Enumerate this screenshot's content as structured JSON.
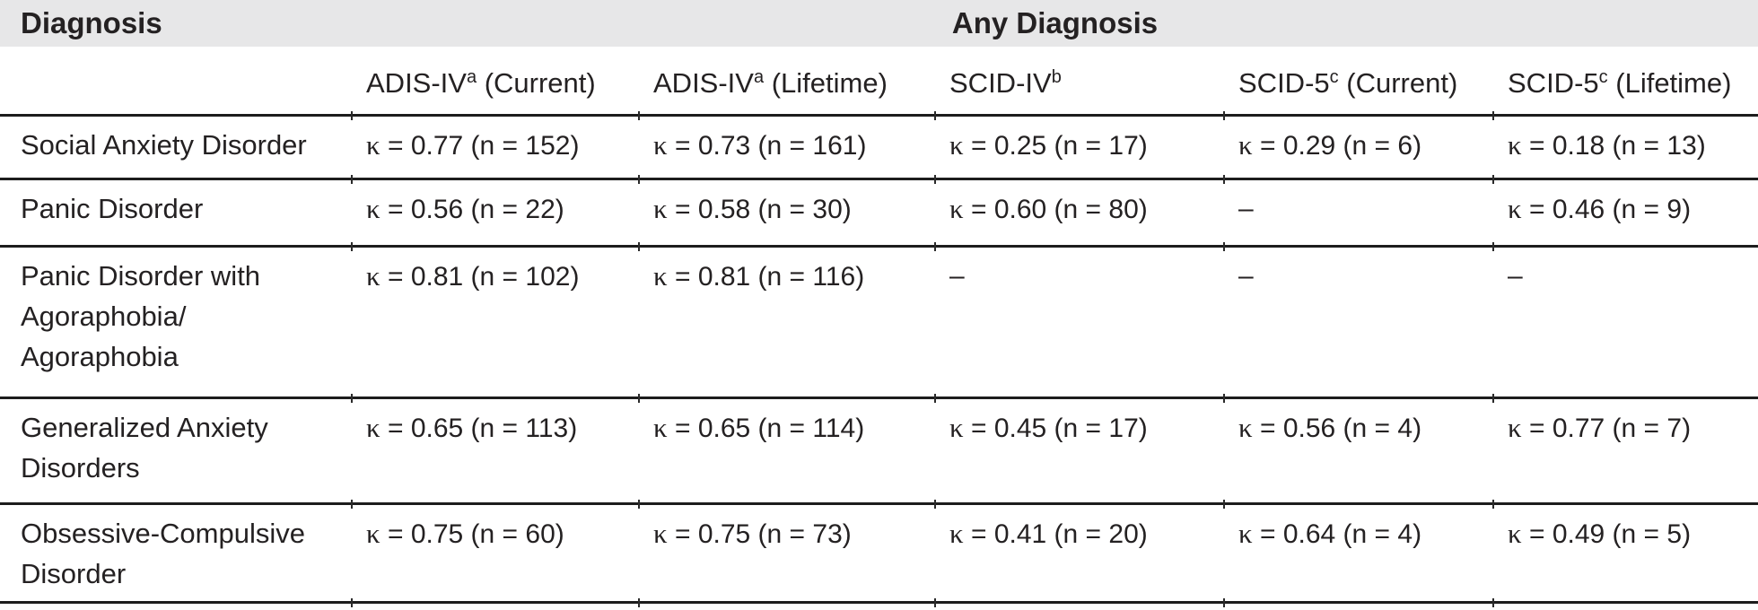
{
  "table": {
    "corner_header": "Diagnosis",
    "group_header": "Any Diagnosis",
    "columns": [
      {
        "pre": "ADIS-IV",
        "sup": "a",
        "post": " (Current)"
      },
      {
        "pre": "ADIS-IV",
        "sup": "a",
        "post": " (Lifetime)"
      },
      {
        "pre": "SCID-IV",
        "sup": "b",
        "post": ""
      },
      {
        "pre": "SCID-5",
        "sup": "c",
        "post": " (Current)"
      },
      {
        "pre": "SCID-5",
        "sup": "c",
        "post": " (Lifetime)"
      }
    ],
    "rows": [
      {
        "label": "Social Anxiety Disorder",
        "values": [
          "κ = 0.77 (n = 152)",
          "κ = 0.73 (n = 161)",
          "κ = 0.25 (n = 17)",
          "κ = 0.29 (n = 6)",
          "κ = 0.18 (n = 13)"
        ]
      },
      {
        "label": "Panic Disorder",
        "values": [
          "κ = 0.56 (n = 22)",
          "κ = 0.58 (n = 30)",
          "κ = 0.60 (n = 80)",
          "–",
          "κ = 0.46 (n = 9)"
        ]
      },
      {
        "label": "Panic Disorder with\nAgoraphobia/\nAgoraphobia",
        "values": [
          "κ = 0.81 (n = 102)",
          "κ = 0.81 (n = 116)",
          "–",
          "–",
          "–"
        ]
      },
      {
        "label": "Generalized Anxiety\nDisorders",
        "values": [
          "κ = 0.65 (n = 113)",
          "κ = 0.65 (n = 114)",
          "κ = 0.45 (n = 17)",
          "κ = 0.56 (n = 4)",
          "κ = 0.77 (n = 7)"
        ]
      },
      {
        "label": "Obsessive-Compulsive\nDisorder",
        "values": [
          "κ = 0.75 (n = 60)",
          "κ = 0.75 (n = 73)",
          "κ = 0.41 (n = 20)",
          "κ = 0.64 (n = 4)",
          "κ = 0.49 (n = 5)"
        ]
      }
    ],
    "accent_colors": {
      "header_band_background": "#e7e7e8",
      "rule_color": "#1d1d1d",
      "text_color": "#242122"
    }
  }
}
